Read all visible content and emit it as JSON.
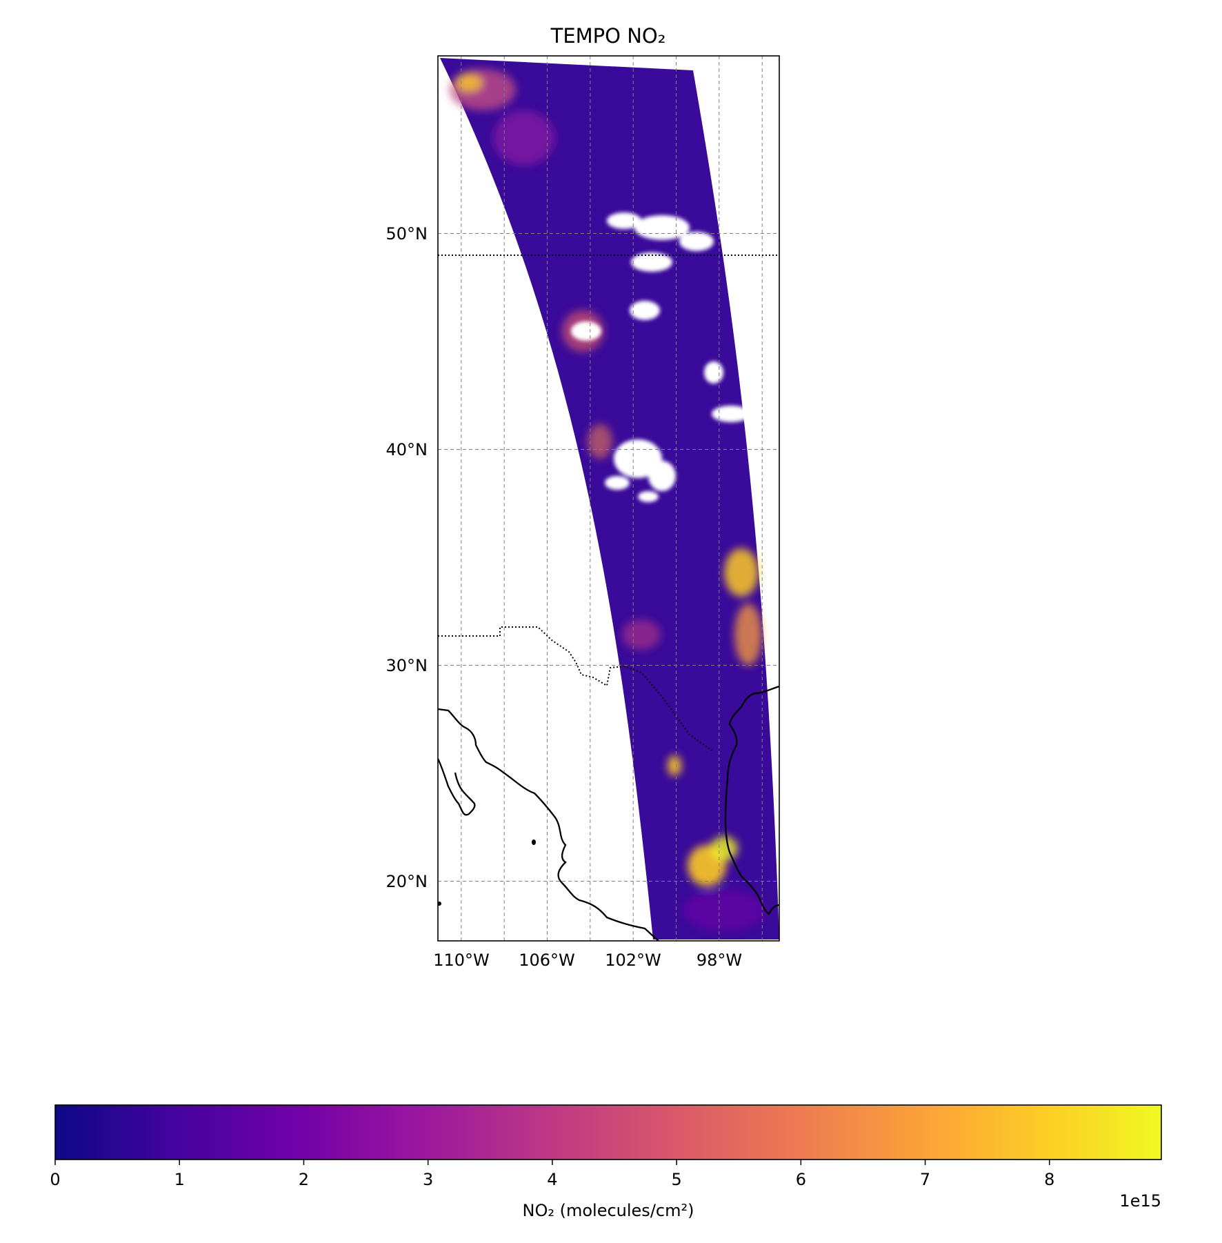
{
  "title": "TEMPO NO₂",
  "map": {
    "lon_range": [
      -112,
      -92
    ],
    "lat_range": [
      17.5,
      58.5
    ],
    "lat_ticks": [
      {
        "value": 50,
        "label": "50°N"
      },
      {
        "value": 40,
        "label": "40°N"
      },
      {
        "value": 30,
        "label": "30°N"
      },
      {
        "value": 20,
        "label": "20°N"
      }
    ],
    "lon_ticks": [
      {
        "value": -110,
        "label": "110°W"
      },
      {
        "value": -106,
        "label": "106°W"
      },
      {
        "value": -102,
        "label": "102°W"
      },
      {
        "value": -98,
        "label": "98°W"
      }
    ],
    "gridlines": "dashed gray",
    "colormap": "plasma",
    "missing_data": "white (cloud)",
    "swath_color_low": "#2a0593",
    "swath_color_high": "#f0f921"
  },
  "colorbar": {
    "label": "NO₂ (molecules/cm²)",
    "ticks": [
      "0",
      "1",
      "2",
      "3",
      "4",
      "5",
      "6",
      "7",
      "8"
    ],
    "range": [
      0,
      8.9
    ],
    "exponent_label": "1e15",
    "stops": [
      "#0d0887",
      "#46039f",
      "#7201a8",
      "#9c179e",
      "#bd3786",
      "#d8576b",
      "#ed7953",
      "#fb9f3a",
      "#fdca26",
      "#f0f921"
    ]
  }
}
